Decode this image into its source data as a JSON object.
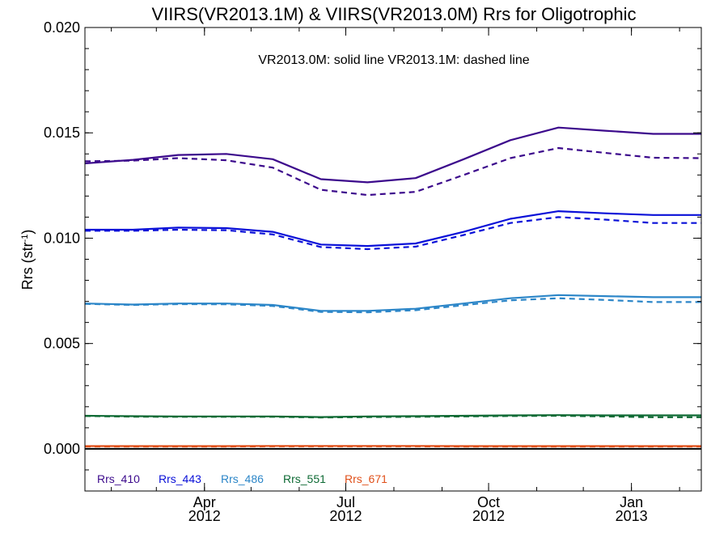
{
  "chart_data": {
    "type": "line",
    "title": "VIIRS(VR2013.1M) & VIIRS(VR2013.0M)  Rrs for Oligotrophic",
    "ylabel": "Rrs (str",
    "ylabel_sup": "-1",
    "ylabel_close": ")",
    "annotation": "VR2013.0M: solid line   VR2013.1M: dashed line",
    "ylim": [
      -0.002,
      0.02
    ],
    "xlim": [
      "2012-01-15",
      "2013-02-15"
    ],
    "y_ticks": [
      "0.000",
      "0.005",
      "0.010",
      "0.015",
      "0.020"
    ],
    "x_tick_labels": [
      {
        "date": "2012-04-01",
        "label1": "Apr",
        "label2": "2012"
      },
      {
        "date": "2012-07-01",
        "label1": "Jul",
        "label2": "2012"
      },
      {
        "date": "2012-10-01",
        "label1": "Oct",
        "label2": "2012"
      },
      {
        "date": "2013-01-01",
        "label1": "Jan",
        "label2": "2013"
      }
    ],
    "x": [
      "2012-01-15",
      "2012-02-15",
      "2012-03-15",
      "2012-04-15",
      "2012-05-15",
      "2012-06-15",
      "2012-07-15",
      "2012-08-15",
      "2012-09-15",
      "2012-10-15",
      "2012-11-15",
      "2012-12-15",
      "2013-01-15",
      "2013-02-15"
    ],
    "series": [
      {
        "name": "Rrs_410",
        "color": "#3c0a8c",
        "solid": [
          0.01355,
          0.01372,
          0.01395,
          0.014,
          0.01375,
          0.0128,
          0.01265,
          0.01285,
          0.01375,
          0.01465,
          0.01525,
          0.0151,
          0.01495,
          0.01495
        ],
        "dashed": [
          0.01365,
          0.01368,
          0.0138,
          0.0137,
          0.01335,
          0.0123,
          0.01205,
          0.0122,
          0.013,
          0.0138,
          0.01428,
          0.01405,
          0.01382,
          0.0138
        ]
      },
      {
        "name": "Rrs_443",
        "color": "#0a10d8",
        "solid": [
          0.0104,
          0.0104,
          0.0105,
          0.01048,
          0.0103,
          0.0097,
          0.00963,
          0.00975,
          0.0103,
          0.01092,
          0.01128,
          0.01118,
          0.0111,
          0.0111
        ],
        "dashed": [
          0.01035,
          0.01035,
          0.0104,
          0.01038,
          0.01018,
          0.00958,
          0.00948,
          0.0096,
          0.01015,
          0.01072,
          0.011,
          0.01088,
          0.01072,
          0.01072
        ]
      },
      {
        "name": "Rrs_486",
        "color": "#2c86c8",
        "solid": [
          0.0069,
          0.00685,
          0.0069,
          0.0069,
          0.00683,
          0.00655,
          0.00655,
          0.00665,
          0.0069,
          0.00715,
          0.0073,
          0.00725,
          0.0072,
          0.0072
        ],
        "dashed": [
          0.00688,
          0.00683,
          0.00687,
          0.00686,
          0.00678,
          0.0065,
          0.00648,
          0.00658,
          0.00682,
          0.00705,
          0.00715,
          0.00707,
          0.00697,
          0.00697
        ]
      },
      {
        "name": "Rrs_551",
        "color": "#0e6a34",
        "solid": [
          0.00157,
          0.00155,
          0.00154,
          0.00154,
          0.00154,
          0.00151,
          0.00154,
          0.00155,
          0.00157,
          0.00159,
          0.0016,
          0.00159,
          0.00159,
          0.00159
        ],
        "dashed": [
          0.00156,
          0.00153,
          0.00152,
          0.00152,
          0.00152,
          0.00149,
          0.00151,
          0.00152,
          0.00154,
          0.00156,
          0.00157,
          0.00154,
          0.0015,
          0.0015
        ]
      },
      {
        "name": "Rrs_671",
        "color": "#e0501a",
        "solid": [
          0.00013,
          0.00013,
          0.00013,
          0.00013,
          0.00014,
          0.00014,
          0.00014,
          0.00014,
          0.00013,
          0.00013,
          0.00013,
          0.00013,
          0.00013,
          0.00013
        ],
        "dashed": [
          0.00011,
          0.00011,
          0.00011,
          0.00011,
          0.00012,
          0.00012,
          0.00012,
          0.00012,
          0.00011,
          0.00011,
          0.00011,
          0.00011,
          0.00011,
          0.00011
        ]
      }
    ],
    "zero_line": 0.0,
    "grid": false,
    "legend_placement": "bottom-left"
  }
}
